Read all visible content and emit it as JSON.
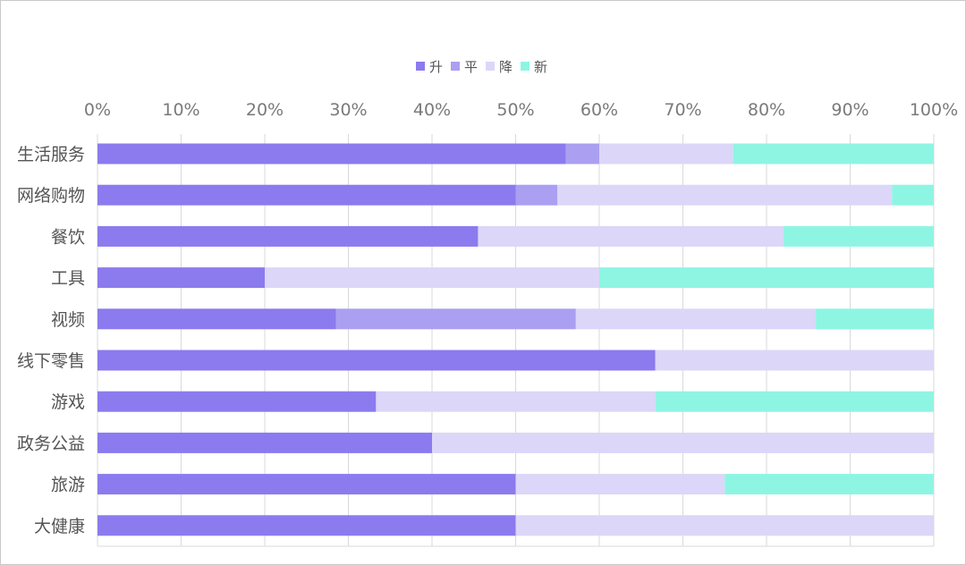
{
  "chart_data": {
    "type": "bar",
    "orientation": "horizontal",
    "stacked": "percent",
    "categories": [
      "生活服务",
      "网络购物",
      "餐饮",
      "工具",
      "视频",
      "线下零售",
      "游戏",
      "政务公益",
      "旅游",
      "大健康"
    ],
    "series": [
      {
        "name": "升",
        "color": "#8b7bee",
        "values": [
          56,
          50,
          45.5,
          20,
          28.5,
          66.7,
          33.3,
          40,
          50,
          50
        ]
      },
      {
        "name": "平",
        "color": "#ab9ff2",
        "values": [
          4,
          5,
          0,
          0,
          28.7,
          0,
          0,
          0,
          0,
          0
        ]
      },
      {
        "name": "降",
        "color": "#dcd6f8",
        "values": [
          16,
          40,
          36.5,
          40,
          28.7,
          33.3,
          33.4,
          60,
          25,
          50
        ]
      },
      {
        "name": "新",
        "color": "#8ef5e3",
        "values": [
          24,
          5,
          18,
          40,
          14.1,
          0,
          33.3,
          0,
          25,
          0
        ]
      }
    ],
    "x_ticks": [
      "0%",
      "10%",
      "20%",
      "30%",
      "40%",
      "50%",
      "60%",
      "70%",
      "80%",
      "90%",
      "100%"
    ],
    "xlim": [
      0,
      100
    ],
    "grid": true,
    "legend_position": "top-center"
  }
}
